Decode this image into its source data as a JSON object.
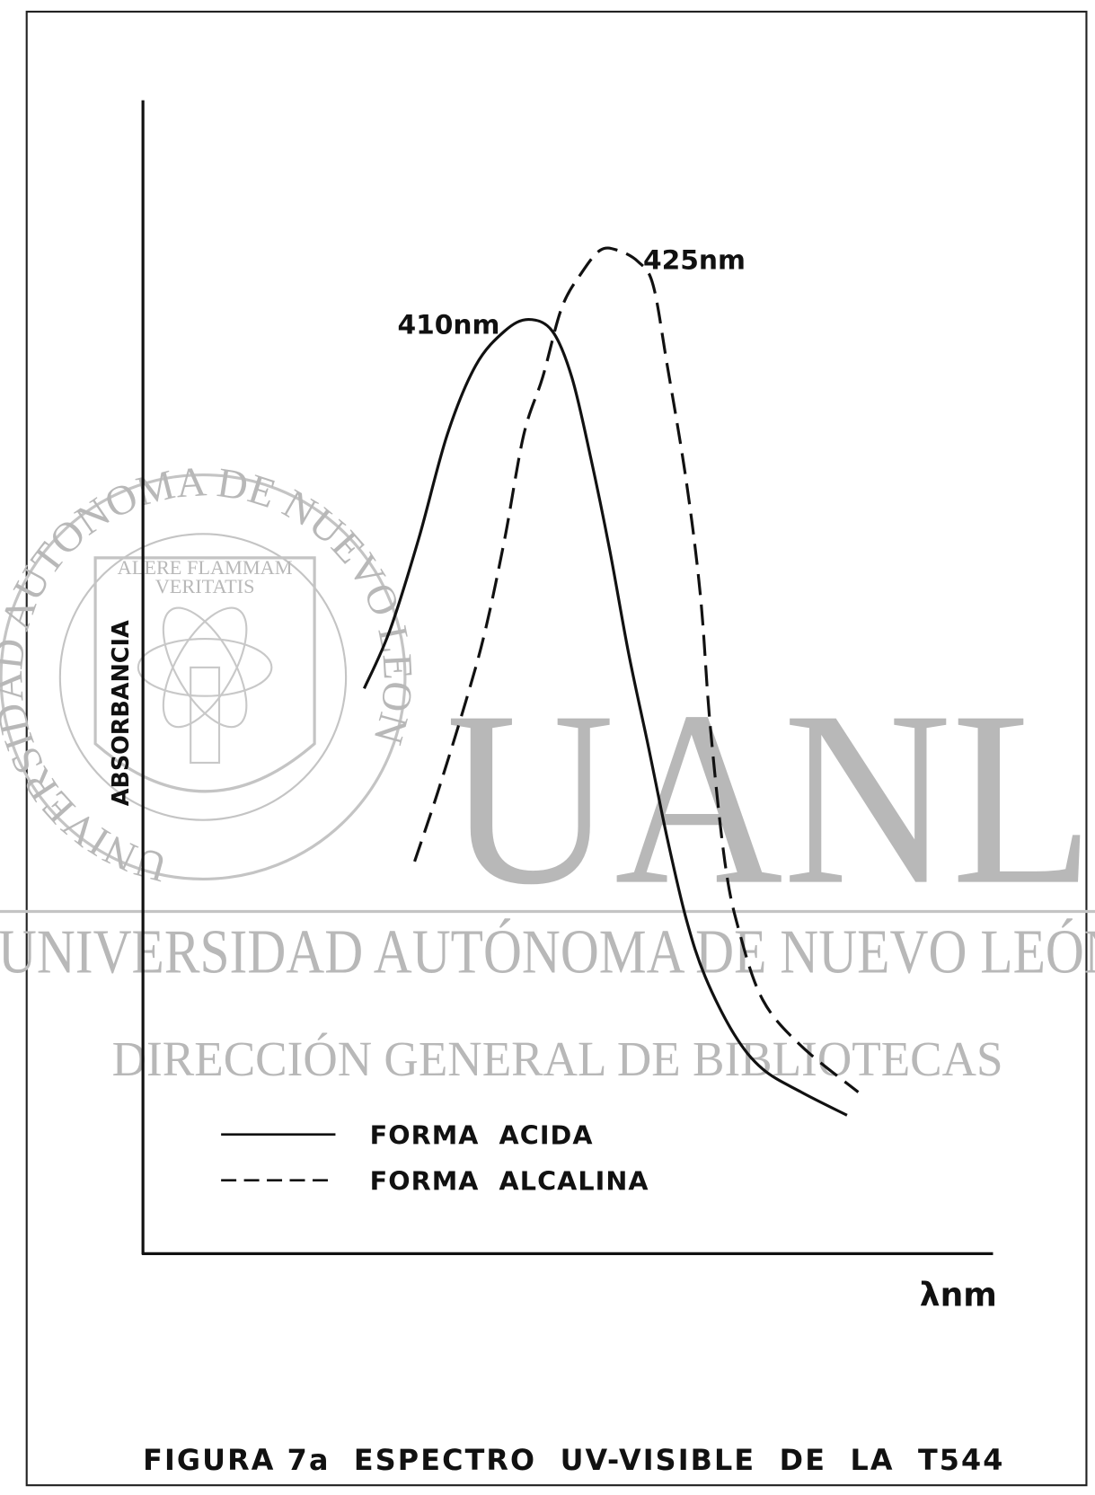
{
  "chart_data": {
    "type": "line",
    "title": "FIGURA 7a  ESPECTRO  UV-VISIBLE  DE  LA  T544",
    "xlabel": "λnm",
    "ylabel": "ABSORBANCIA",
    "xlim": [
      345,
      488
    ],
    "ylim": [
      0,
      1
    ],
    "annotations": [
      "410nm",
      "425nm"
    ],
    "series": [
      {
        "name": "FORMA  ACIDA",
        "color": "#111111",
        "dash": "none",
        "x": [
          382.3,
          386.6,
          391.5,
          396.3,
          401.1,
          406.0,
          410,
          414.0,
          417.3,
          420.5,
          423.7,
          426.9,
          430.2,
          433.4,
          436.6,
          439.8,
          444.7,
          449.5,
          456.0,
          463.7
        ],
        "values": [
          0.49,
          0.54,
          0.62,
          0.71,
          0.77,
          0.8,
          0.81,
          0.8,
          0.76,
          0.69,
          0.61,
          0.52,
          0.44,
          0.36,
          0.29,
          0.24,
          0.19,
          0.16,
          0.14,
          0.12
        ]
      },
      {
        "name": "FORMA  ALCALINA",
        "color": "#111111",
        "dash": "22 10",
        "x": [
          390.8,
          394.7,
          399.5,
          402.7,
          406.0,
          409.2,
          412.4,
          415.6,
          418.9,
          422.1,
          425,
          428.5,
          431.0,
          433.4,
          436.6,
          439.0,
          440.6,
          443.1,
          445.5,
          449.5,
          456.0,
          465.6
        ],
        "values": [
          0.34,
          0.4,
          0.48,
          0.54,
          0.62,
          0.71,
          0.76,
          0.82,
          0.85,
          0.87,
          0.87,
          0.86,
          0.84,
          0.77,
          0.67,
          0.57,
          0.46,
          0.34,
          0.28,
          0.22,
          0.18,
          0.14
        ]
      }
    ],
    "watermark": {
      "seal_ring": "UNIVERSIDAD AUTONOMA DE NUEVO LEON",
      "motto": [
        "ALERE FLAMMAM",
        "VERITATIS"
      ],
      "logo": "UANL",
      "line1": "UNIVERSIDAD AUTÓNOMA DE NUEVO LEÓN",
      "line2": "DIRECCIÓN GENERAL DE BIBLIOTECAS"
    }
  }
}
